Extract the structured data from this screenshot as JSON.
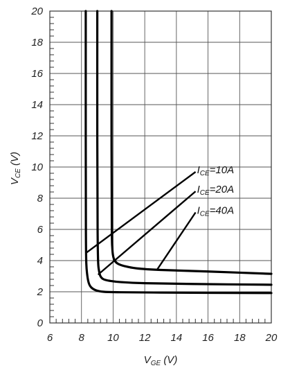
{
  "chart_data": {
    "type": "line",
    "xlabel": {
      "main": "V",
      "sub": "GE",
      "unit": "(V)"
    },
    "ylabel": {
      "main": "V",
      "sub": "CE",
      "unit": "(V)"
    },
    "xlim": [
      6,
      20
    ],
    "ylim": [
      0,
      20
    ],
    "xticks": [
      6,
      8,
      10,
      12,
      14,
      16,
      18,
      20
    ],
    "yticks": [
      0,
      2,
      4,
      6,
      8,
      10,
      12,
      14,
      16,
      18,
      20
    ],
    "minor_ticks": 5,
    "grid": true,
    "series": [
      {
        "name": "I_CE=10A",
        "x": [
          8.27,
          8.27,
          8.28,
          8.3,
          8.35,
          8.45,
          8.6,
          8.9,
          9.4,
          10.5,
          13,
          16,
          20
        ],
        "y": [
          20,
          12,
          6,
          4,
          3.2,
          2.6,
          2.3,
          2.1,
          2.0,
          1.97,
          1.95,
          1.93,
          1.92
        ]
      },
      {
        "name": "I_CE=20A",
        "x": [
          9.0,
          9.0,
          9.02,
          9.05,
          9.1,
          9.2,
          9.4,
          9.8,
          10.5,
          12,
          15,
          20
        ],
        "y": [
          20,
          12,
          6,
          4,
          3.4,
          3.0,
          2.8,
          2.7,
          2.62,
          2.55,
          2.5,
          2.45
        ]
      },
      {
        "name": "I_CE=40A",
        "x": [
          9.9,
          9.9,
          9.92,
          9.95,
          10.0,
          10.1,
          10.3,
          10.7,
          11.5,
          13,
          16,
          20
        ],
        "y": [
          20,
          12,
          6,
          4.8,
          4.3,
          4.0,
          3.8,
          3.65,
          3.5,
          3.4,
          3.3,
          3.15
        ]
      }
    ],
    "annotations": [
      {
        "main": "I",
        "sub": "CE",
        "rest": "=10A",
        "series_index": 0,
        "label_at": [
          15.3,
          9.6
        ],
        "point_to": [
          8.3,
          4.5
        ]
      },
      {
        "main": "I",
        "sub": "CE",
        "rest": "=20A",
        "series_index": 1,
        "label_at": [
          15.3,
          8.35
        ],
        "point_to": [
          9.05,
          3.1
        ]
      },
      {
        "main": "I",
        "sub": "CE",
        "rest": "=40A",
        "series_index": 2,
        "label_at": [
          15.3,
          7.0
        ],
        "point_to": [
          12.8,
          3.45
        ]
      }
    ]
  }
}
